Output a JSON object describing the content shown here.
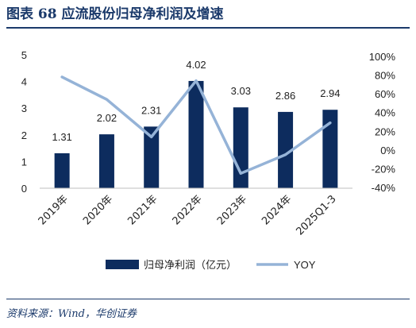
{
  "figure": {
    "title": "图表 68    应流股份归母净利润及增速",
    "source": "资料来源：Wind，华创证券"
  },
  "chart_data": {
    "type": "bar",
    "categories": [
      "2019年",
      "2020年",
      "2021年",
      "2022年",
      "2023年",
      "2024年",
      "2025Q1-3"
    ],
    "series": [
      {
        "name": "归母净利润（亿元）",
        "type": "bar",
        "axis": "left",
        "values": [
          1.31,
          2.02,
          2.31,
          4.02,
          3.03,
          2.86,
          2.94
        ],
        "value_labels": [
          "1.31",
          "2.02",
          "2.31",
          "4.02",
          "3.03",
          "2.86",
          "2.94"
        ]
      },
      {
        "name": "YOY",
        "type": "line",
        "axis": "right",
        "values": [
          78,
          54,
          14,
          74,
          -25,
          -5,
          29
        ]
      }
    ],
    "y_left": {
      "min": 0,
      "max": 5,
      "ticks": [
        0,
        1,
        2,
        3,
        4,
        5
      ],
      "tick_labels": [
        "0",
        "1",
        "2",
        "3",
        "4",
        "5"
      ]
    },
    "y_right": {
      "min": -40,
      "max": 100,
      "ticks": [
        -40,
        -20,
        0,
        20,
        40,
        60,
        80,
        100
      ],
      "tick_labels": [
        "-40%",
        "-20%",
        "0%",
        "20%",
        "40%",
        "60%",
        "80%",
        "100%"
      ]
    },
    "grid": false,
    "legend_position": "bottom",
    "colors": {
      "bar": "#0d2c5e",
      "line": "#95b3d7"
    }
  }
}
